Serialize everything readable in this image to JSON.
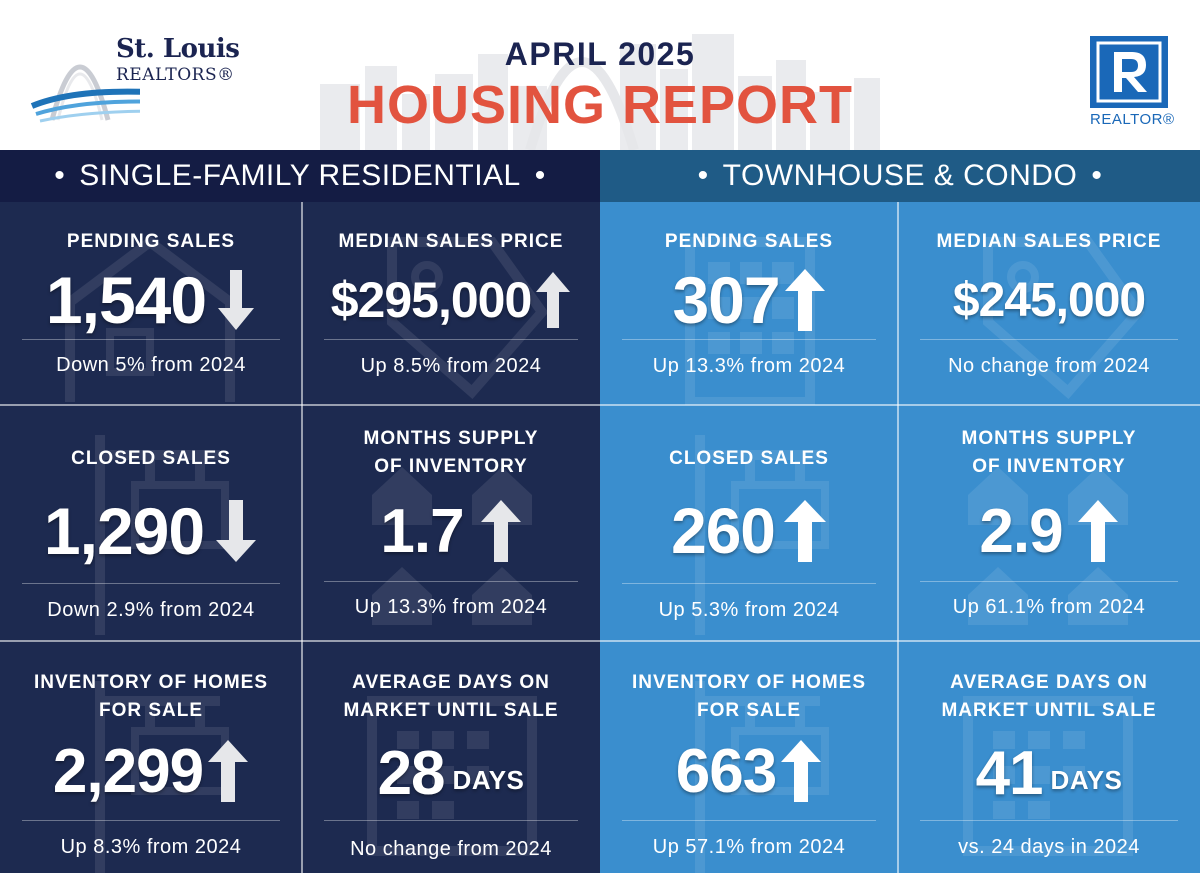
{
  "header": {
    "logo_left": {
      "line1": "St. Louis",
      "line2": "REALTORS®"
    },
    "month": "APRIL 2025",
    "title": "HOUSING REPORT",
    "logo_right": {
      "word": "REALTOR®"
    }
  },
  "sections": {
    "left": {
      "title": "SINGLE-FAMILY RESIDENTIAL",
      "dot": "•"
    },
    "right": {
      "title": "TOWNHOUSE & CONDO",
      "dot": "•"
    }
  },
  "colors": {
    "dark_section": "#141c44",
    "dark_cell": "#1d2a50",
    "light_section": "#1f5b86",
    "light_cell": "#3a8ece",
    "title_red": "#e2533f",
    "navy": "#1b2451",
    "realtor_blue": "#1a68b8"
  },
  "single_family": {
    "pending_sales": {
      "label": "PENDING SALES",
      "value": "1,540",
      "trend": "down",
      "change": "Down 5% from 2024",
      "icon": "house-icon"
    },
    "median_sales_price": {
      "label": "MEDIAN SALES PRICE",
      "value": "$295,000",
      "trend": "up",
      "change": "Up 8.5% from 2024",
      "icon": "price-tag-icon"
    },
    "closed_sales": {
      "label": "CLOSED SALES",
      "value": "1,290",
      "trend": "down",
      "change": "Down 2.9% from 2024",
      "icon": "sold-sign-icon"
    },
    "months_supply": {
      "label1": "MONTHS SUPPLY",
      "label2": "OF INVENTORY",
      "value": "1.7",
      "trend": "up",
      "change": "Up 13.3% from 2024",
      "icon": "houses-grid-icon"
    },
    "inventory": {
      "label1": "INVENTORY OF HOMES",
      "label2": "FOR SALE",
      "value": "2,299",
      "trend": "up",
      "change": "Up 8.3% from 2024",
      "icon": "for-sale-sign-icon"
    },
    "avg_days": {
      "label1": "AVERAGE DAYS ON",
      "label2": "MARKET UNTIL SALE",
      "value": "28",
      "unit": "DAYS",
      "change": "No change from 2024",
      "icon": "calendar-icon"
    }
  },
  "townhouse_condo": {
    "pending_sales": {
      "label": "PENDING SALES",
      "value": "307",
      "trend": "up",
      "change": "Up 13.3% from 2024",
      "icon": "building-icon"
    },
    "median_sales_price": {
      "label": "MEDIAN SALES PRICE",
      "value": "$245,000",
      "trend": "none",
      "change": "No change from 2024",
      "icon": "price-tag-icon"
    },
    "closed_sales": {
      "label": "CLOSED SALES",
      "value": "260",
      "trend": "up",
      "change": "Up 5.3% from 2024",
      "icon": "sold-sign-icon"
    },
    "months_supply": {
      "label1": "MONTHS SUPPLY",
      "label2": "OF INVENTORY",
      "value": "2.9",
      "trend": "up",
      "change": "Up 61.1% from 2024",
      "icon": "houses-grid-icon"
    },
    "inventory": {
      "label1": "INVENTORY OF HOMES",
      "label2": "FOR SALE",
      "value": "663",
      "trend": "up",
      "change": "Up 57.1% from 2024",
      "icon": "for-sale-sign-icon"
    },
    "avg_days": {
      "label1": "AVERAGE DAYS ON",
      "label2": "MARKET UNTIL SALE",
      "value": "41",
      "unit": "DAYS",
      "change": "vs. 24 days in 2024",
      "icon": "calendar-icon"
    }
  }
}
